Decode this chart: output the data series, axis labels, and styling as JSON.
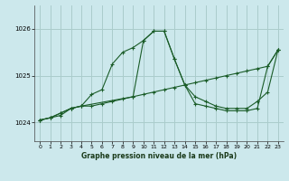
{
  "title": "Graphe pression niveau de la mer (hPa)",
  "bg_color": "#cce8ec",
  "grid_color": "#aacccc",
  "line_color": "#1a5c28",
  "x_ticks": [
    0,
    1,
    2,
    3,
    4,
    5,
    6,
    7,
    8,
    9,
    10,
    11,
    12,
    13,
    14,
    15,
    16,
    17,
    18,
    19,
    20,
    21,
    22,
    23
  ],
  "y_ticks": [
    1024,
    1025,
    1026
  ],
  "ylim": [
    1023.6,
    1026.5
  ],
  "xlim": [
    -0.5,
    23.5
  ],
  "series1_x": [
    0,
    1,
    2,
    3,
    4,
    5,
    6,
    7,
    8,
    9,
    10,
    11,
    12,
    13,
    14,
    15,
    16,
    17,
    18,
    19,
    20,
    21,
    22,
    23
  ],
  "series1_y": [
    1024.05,
    1024.1,
    1024.15,
    1024.3,
    1024.35,
    1024.35,
    1024.4,
    1024.45,
    1024.5,
    1024.55,
    1024.6,
    1024.65,
    1024.7,
    1024.75,
    1024.8,
    1024.85,
    1024.9,
    1024.95,
    1025.0,
    1025.05,
    1025.1,
    1025.15,
    1025.2,
    1025.55
  ],
  "series2_x": [
    0,
    1,
    2,
    3,
    4,
    5,
    6,
    7,
    8,
    9,
    10,
    11,
    12,
    13,
    14,
    15,
    16,
    17,
    18,
    19,
    20,
    21,
    22,
    23
  ],
  "series2_y": [
    1024.05,
    1024.1,
    1024.2,
    1024.3,
    1024.35,
    1024.6,
    1024.7,
    1025.25,
    1025.5,
    1025.6,
    1025.75,
    1025.95,
    1025.95,
    1025.35,
    1024.8,
    1024.55,
    1024.45,
    1024.35,
    1024.3,
    1024.3,
    1024.3,
    1024.45,
    1024.65,
    1025.55
  ],
  "series3_x": [
    0,
    1,
    2,
    3,
    4,
    9,
    10,
    11,
    12,
    13,
    14,
    15,
    16,
    17,
    18,
    19,
    20,
    21,
    22,
    23
  ],
  "series3_y": [
    1024.05,
    1024.1,
    1024.2,
    1024.3,
    1024.35,
    1024.55,
    1025.75,
    1025.95,
    1025.95,
    1025.35,
    1024.8,
    1024.4,
    1024.35,
    1024.3,
    1024.25,
    1024.25,
    1024.25,
    1024.3,
    1025.2,
    1025.55
  ]
}
